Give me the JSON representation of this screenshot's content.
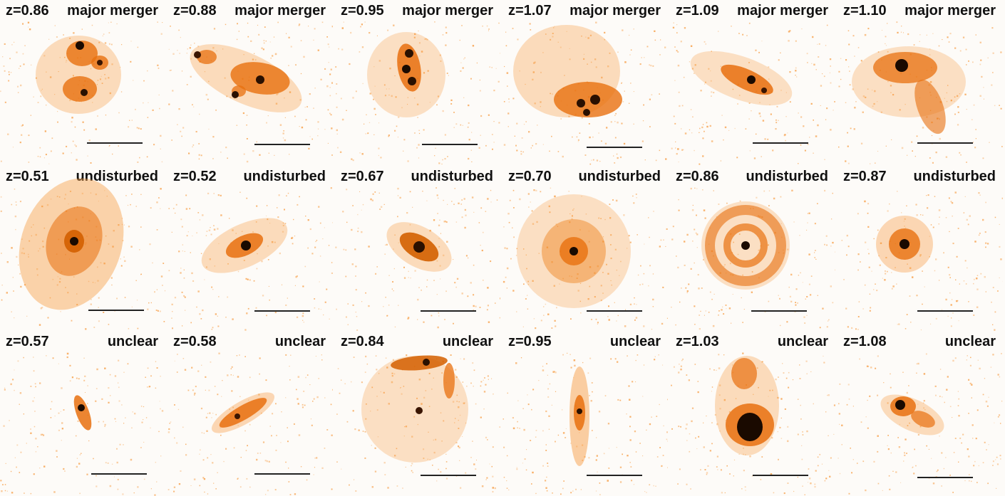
{
  "rows": [
    {
      "panels": [
        {
          "redshift": "z=0.86",
          "classification": "major merger",
          "morphology": "merger-1"
        },
        {
          "redshift": "z=0.88",
          "classification": "major merger",
          "morphology": "merger-2"
        },
        {
          "redshift": "z=0.95",
          "classification": "major merger",
          "morphology": "merger-3"
        },
        {
          "redshift": "z=1.07",
          "classification": "major merger",
          "morphology": "merger-4"
        },
        {
          "redshift": "z=1.09",
          "classification": "major merger",
          "morphology": "merger-5"
        },
        {
          "redshift": "z=1.10",
          "classification": "major merger",
          "morphology": "merger-6"
        }
      ]
    },
    {
      "panels": [
        {
          "redshift": "z=0.51",
          "classification": "undisturbed",
          "morphology": "disk-1"
        },
        {
          "redshift": "z=0.52",
          "classification": "undisturbed",
          "morphology": "disk-2"
        },
        {
          "redshift": "z=0.67",
          "classification": "undisturbed",
          "morphology": "disk-3"
        },
        {
          "redshift": "z=0.70",
          "classification": "undisturbed",
          "morphology": "disk-4"
        },
        {
          "redshift": "z=0.86",
          "classification": "undisturbed",
          "morphology": "disk-5"
        },
        {
          "redshift": "z=0.87",
          "classification": "undisturbed",
          "morphology": "disk-6"
        }
      ]
    },
    {
      "panels": [
        {
          "redshift": "z=0.57",
          "classification": "unclear",
          "morphology": "unclear-1"
        },
        {
          "redshift": "z=0.58",
          "classification": "unclear",
          "morphology": "unclear-2"
        },
        {
          "redshift": "z=0.84",
          "classification": "unclear",
          "morphology": "unclear-3"
        },
        {
          "redshift": "z=0.95",
          "classification": "unclear",
          "morphology": "unclear-4"
        },
        {
          "redshift": "z=1.03",
          "classification": "unclear",
          "morphology": "unclear-5"
        },
        {
          "redshift": "z=1.08",
          "classification": "unclear",
          "morphology": "unclear-6"
        }
      ]
    }
  ],
  "colors": {
    "background": "#fdfbf8",
    "glow": "#f7a04a",
    "mid": "#e8700f",
    "core": "#1a0a00"
  }
}
